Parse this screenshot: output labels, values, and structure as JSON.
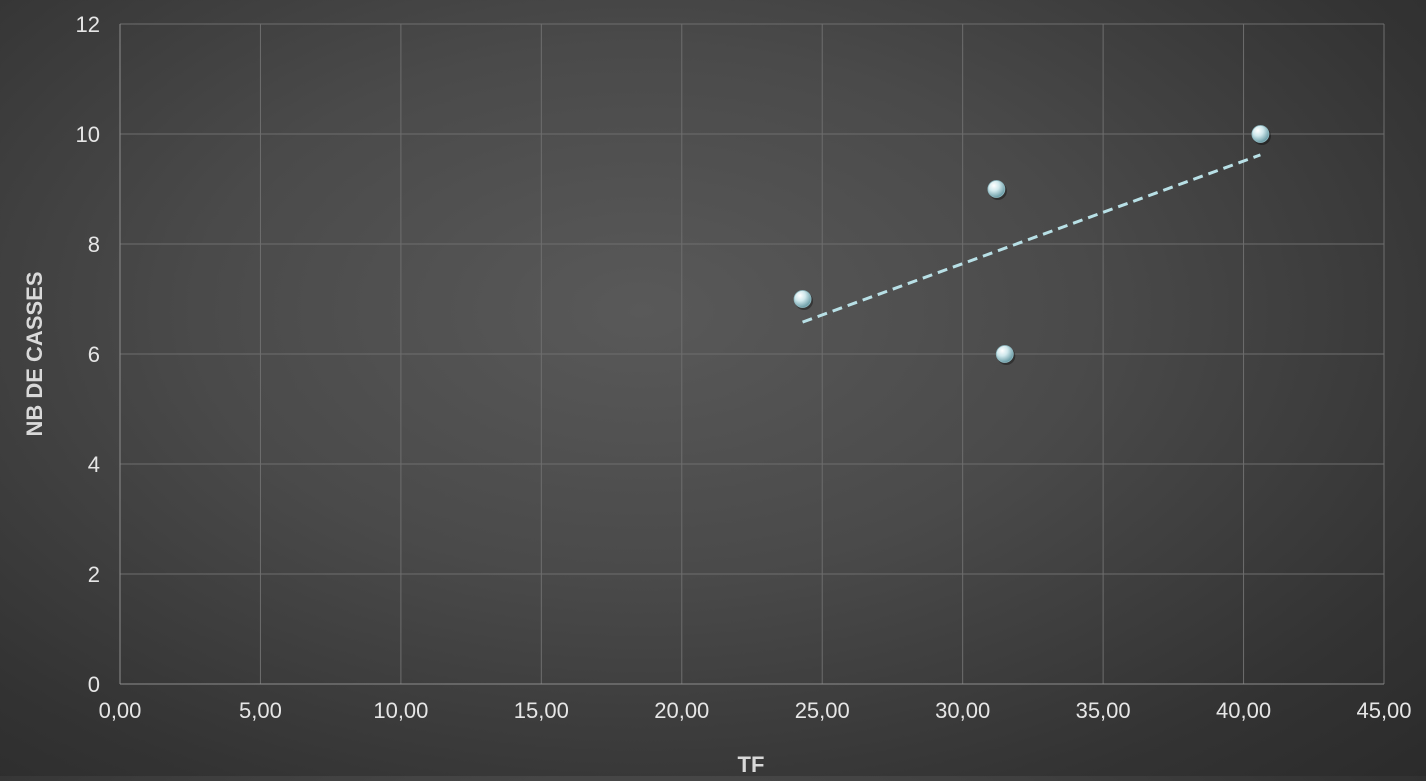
{
  "chart_data": {
    "type": "scatter",
    "xlabel": "TF",
    "ylabel": "NB DE  CASSES",
    "xlim": [
      0,
      45
    ],
    "ylim": [
      0,
      12
    ],
    "x_ticks": [
      0,
      5,
      10,
      15,
      20,
      25,
      30,
      35,
      40,
      45
    ],
    "x_tick_labels": [
      "0,00",
      "5,00",
      "10,00",
      "15,00",
      "20,00",
      "25,00",
      "30,00",
      "35,00",
      "40,00",
      "45,00"
    ],
    "y_ticks": [
      0,
      2,
      4,
      6,
      8,
      10,
      12
    ],
    "y_tick_labels": [
      "0",
      "2",
      "4",
      "6",
      "8",
      "10",
      "12"
    ],
    "grid": true,
    "legend": "none",
    "points": [
      {
        "x": 24.3,
        "y": 7
      },
      {
        "x": 31.2,
        "y": 9
      },
      {
        "x": 31.5,
        "y": 6
      },
      {
        "x": 40.6,
        "y": 10
      }
    ],
    "trendline": {
      "type": "linear",
      "x_start": 24.3,
      "y_start": 6.58,
      "x_end": 40.6,
      "y_end": 9.62,
      "style": "dashed"
    },
    "colors": {
      "marker": "#a9cfd6",
      "trendline": "#b8e0e6",
      "grid": "#6e6e6e",
      "axis": "#8c8c8c",
      "text": "#e6e6e6"
    }
  }
}
